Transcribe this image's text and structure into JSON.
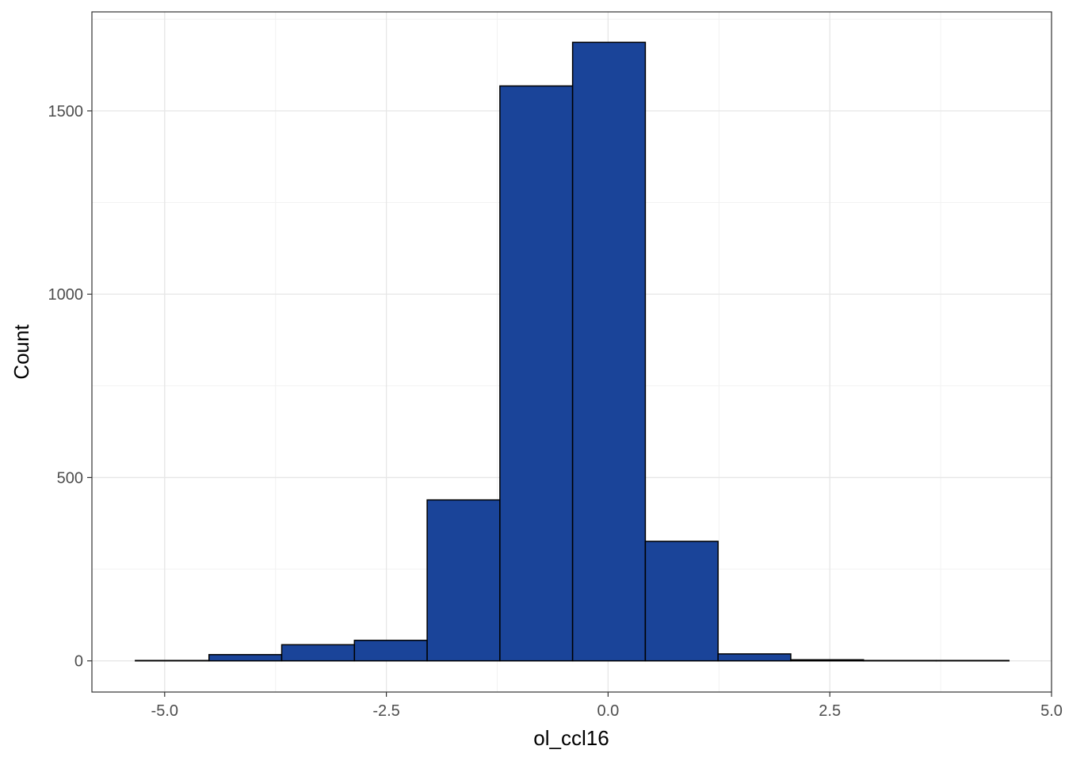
{
  "chart_data": {
    "type": "bar",
    "subtype": "histogram",
    "bins": [
      {
        "x0": -5.33,
        "x1": -4.5,
        "count": 1
      },
      {
        "x0": -4.5,
        "x1": -3.68,
        "count": 17
      },
      {
        "x0": -3.68,
        "x1": -2.86,
        "count": 44
      },
      {
        "x0": -2.86,
        "x1": -2.04,
        "count": 56
      },
      {
        "x0": -2.04,
        "x1": -1.22,
        "count": 439
      },
      {
        "x0": -1.22,
        "x1": -0.4,
        "count": 1568
      },
      {
        "x0": -0.4,
        "x1": 0.42,
        "count": 1687
      },
      {
        "x0": 0.42,
        "x1": 1.24,
        "count": 326
      },
      {
        "x0": 1.24,
        "x1": 2.06,
        "count": 19
      },
      {
        "x0": 2.06,
        "x1": 2.88,
        "count": 3
      },
      {
        "x0": 2.88,
        "x1": 3.7,
        "count": 1
      },
      {
        "x0": 3.7,
        "x1": 4.52,
        "count": 1
      }
    ],
    "xlabel": "ol_ccl16",
    "ylabel": "Count",
    "xlim": [
      -5.82,
      5.0
    ],
    "ylim": [
      -85,
      1770
    ],
    "x_ticks": [
      -5.0,
      -2.5,
      0.0,
      2.5,
      5.0
    ],
    "x_tick_labels": [
      "-5.0",
      "-2.5",
      "0.0",
      "2.5",
      "5.0"
    ],
    "y_ticks": [
      0,
      500,
      1000,
      1500
    ],
    "y_tick_labels": [
      "0",
      "500",
      "1000",
      "1500"
    ],
    "grid": true,
    "theme": "bw",
    "fill_color": "#1a4499",
    "edge_color": "#000000"
  }
}
